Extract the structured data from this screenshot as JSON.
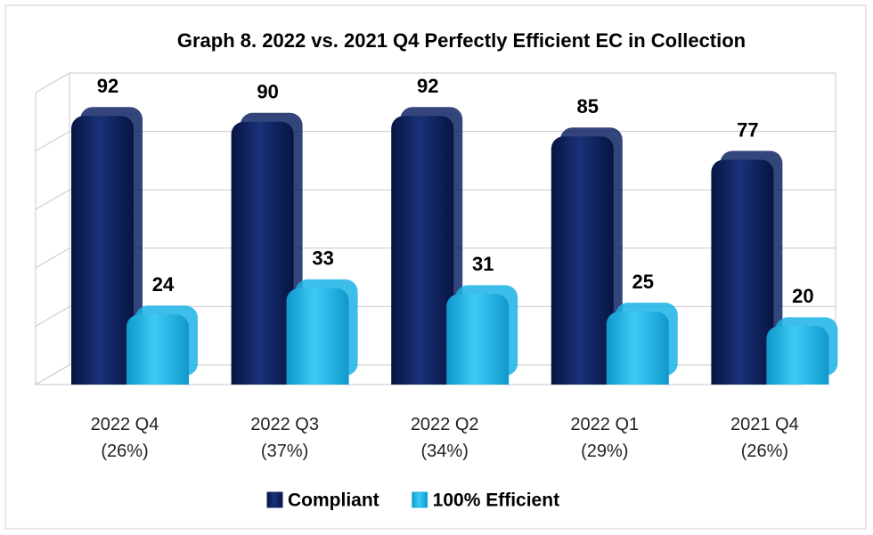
{
  "chart_data": {
    "type": "bar3d",
    "title": "Graph 8. 2022 vs. 2021 Q4 Perfectly Efficient EC in Collection",
    "categories": [
      "2022 Q4\n(26%)",
      "2022 Q3\n(37%)",
      "2022 Q2\n(34%)",
      "2022 Q1\n(29%)",
      "2021 Q4\n(26%)"
    ],
    "series": [
      {
        "name": "Compliant",
        "color": "#0f2463",
        "values": [
          92,
          90,
          92,
          85,
          77
        ]
      },
      {
        "name": "100% Efficient",
        "color": "#1bb3e6",
        "values": [
          24,
          33,
          31,
          25,
          20
        ]
      }
    ],
    "ylim": [
      0,
      100
    ],
    "yticks": [
      0,
      20,
      40,
      60,
      80,
      100
    ],
    "grid": true,
    "legend": "bottom"
  }
}
